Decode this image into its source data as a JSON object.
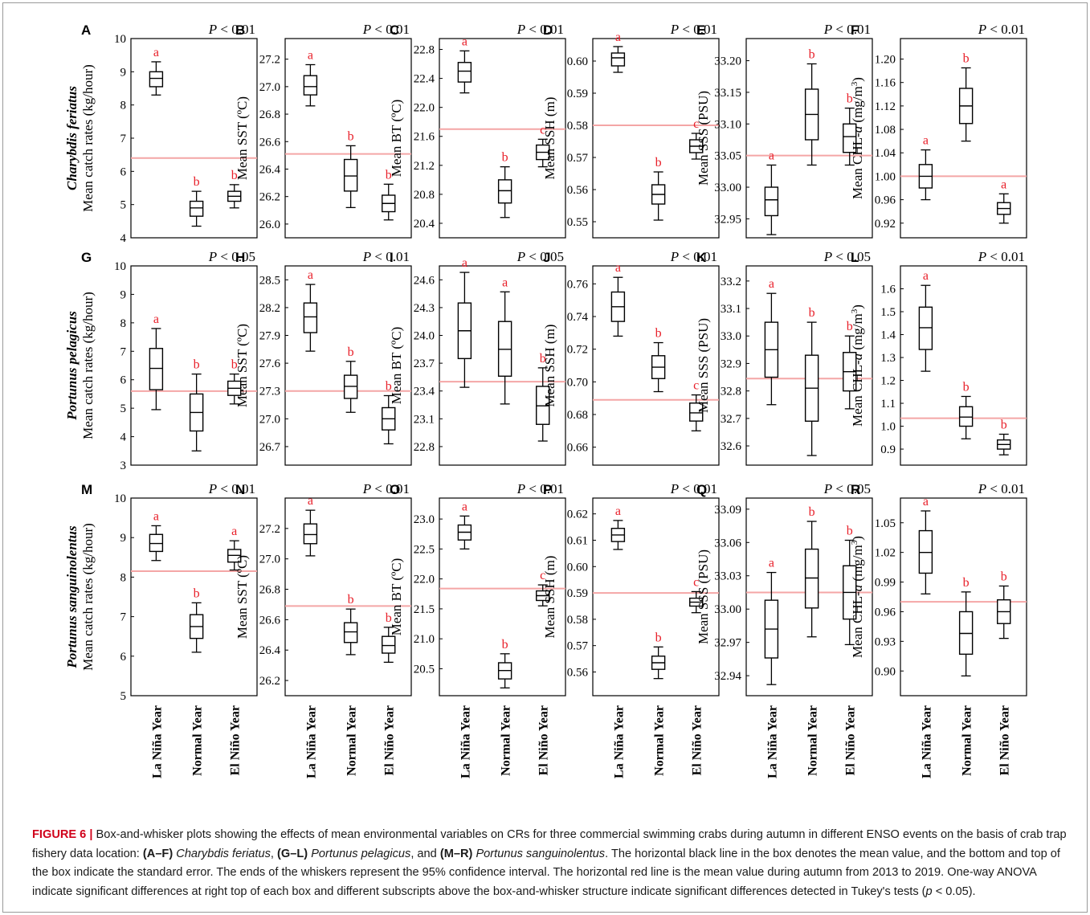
{
  "figure_label": "FIGURE 6 |",
  "caption": {
    "p1": " Box-and-whisker plots showing the effects of mean environmental variables on CRs for three commercial swimming crabs during autumn in different ENSO events on the basis of crab trap fishery data location: ",
    "r1": "(A–F)",
    "s1": "Charybdis feriatus",
    "c1": ", ",
    "r2": "(G–L)",
    "s2": "Portunus pelagicus",
    "c2": ", and ",
    "r3": "(M–R)",
    "s3": "Portunus sanguinolentus",
    "p2": ". The horizontal black line in the box denotes the mean value, and the bottom and top of the box indicate the standard error. The ends of the whiskers represent the 95% confidence interval. The horizontal red line is the mean value during autumn from 2013 to 2019. One-way ANOVA indicate significant differences at right top of each box and different subscripts above the box-and-whisker structure indicate significant differences detected in Tukey's tests (",
    "pvar": "p",
    "p3": " < 0.05)."
  },
  "colors": {
    "box": "#000000",
    "ref_line": "#f4a6a6",
    "letters": "#e8202a",
    "text": "#000000"
  },
  "chart_data": [
    {
      "type": "box",
      "panel": "A",
      "pvalue": "P < 0.01",
      "species": "Charybdis feriatus",
      "ylabel": "Mean catch rates (kg/hour)",
      "yticks": [
        "4",
        "5",
        "6",
        "7",
        "8",
        "9",
        "10"
      ],
      "ylim": [
        4,
        10
      ],
      "ref": 6.4,
      "categories": [
        "La Niña Year",
        "Normal Year",
        "El Niño Year"
      ],
      "boxes": [
        {
          "mean": 8.8,
          "q1": 8.55,
          "q3": 9.0,
          "lo": 8.3,
          "hi": 9.3,
          "letter": "a"
        },
        {
          "mean": 4.9,
          "q1": 4.65,
          "q3": 5.1,
          "lo": 4.35,
          "hi": 5.4,
          "letter": "b"
        },
        {
          "mean": 5.25,
          "q1": 5.1,
          "q3": 5.4,
          "lo": 4.9,
          "hi": 5.6,
          "letter": "b"
        }
      ]
    },
    {
      "type": "box",
      "panel": "B",
      "pvalue": "P < 0.01",
      "ylabel": "Mean SST (ºC)",
      "yticks": [
        "26.0",
        "26.2",
        "26.4",
        "26.6",
        "26.8",
        "27.0",
        "27.2"
      ],
      "ylim": [
        25.9,
        27.35
      ],
      "ref": 26.51,
      "categories": [
        "La Niña Year",
        "Normal Year",
        "El Niño Year"
      ],
      "boxes": [
        {
          "mean": 27.0,
          "q1": 26.94,
          "q3": 27.08,
          "lo": 26.86,
          "hi": 27.16,
          "letter": "a"
        },
        {
          "mean": 26.35,
          "q1": 26.24,
          "q3": 26.47,
          "lo": 26.12,
          "hi": 26.57,
          "letter": "b"
        },
        {
          "mean": 26.15,
          "q1": 26.09,
          "q3": 26.21,
          "lo": 26.03,
          "hi": 26.29,
          "letter": "b"
        }
      ]
    },
    {
      "type": "box",
      "panel": "C",
      "pvalue": "P < 0.01",
      "ylabel": "Mean BT (ºC)",
      "yticks": [
        "20.4",
        "20.8",
        "21.2",
        "21.6",
        "22.0",
        "22.4",
        "22.8"
      ],
      "ylim": [
        20.2,
        22.95
      ],
      "ref": 21.7,
      "categories": [
        "La Niña Year",
        "Normal Year",
        "El Niño Year"
      ],
      "boxes": [
        {
          "mean": 22.5,
          "q1": 22.35,
          "q3": 22.62,
          "lo": 22.2,
          "hi": 22.78,
          "letter": "a"
        },
        {
          "mean": 20.85,
          "q1": 20.68,
          "q3": 21.0,
          "lo": 20.48,
          "hi": 21.18,
          "letter": "b"
        },
        {
          "mean": 21.38,
          "q1": 21.28,
          "q3": 21.48,
          "lo": 21.18,
          "hi": 21.56,
          "letter": "c"
        }
      ]
    },
    {
      "type": "box",
      "panel": "D",
      "pvalue": "P < 0.01",
      "ylabel": "Mean SSH (m)",
      "yticks": [
        "0.55",
        "0.56",
        "0.57",
        "0.58",
        "0.59",
        "0.60"
      ],
      "ylim": [
        0.545,
        0.607
      ],
      "ref": 0.58,
      "categories": [
        "La Niña Year",
        "Normal Year",
        "El Niño Year"
      ],
      "boxes": [
        {
          "mean": 0.601,
          "q1": 0.5985,
          "q3": 0.6025,
          "lo": 0.5965,
          "hi": 0.6045,
          "letter": "a"
        },
        {
          "mean": 0.5585,
          "q1": 0.5555,
          "q3": 0.5615,
          "lo": 0.5505,
          "hi": 0.5655,
          "letter": "b"
        },
        {
          "mean": 0.5735,
          "q1": 0.5715,
          "q3": 0.5755,
          "lo": 0.5695,
          "hi": 0.5775,
          "letter": "c"
        }
      ]
    },
    {
      "type": "box",
      "panel": "E",
      "pvalue": "P < 0.01",
      "ylabel": "Mean SSS (PSU)",
      "yticks": [
        "32.95",
        "33.00",
        "33.05",
        "33.10",
        "33.15",
        "33.20"
      ],
      "ylim": [
        32.92,
        33.235
      ],
      "ref": 33.05,
      "categories": [
        "La Niña Year",
        "Normal Year",
        "El Niño Year"
      ],
      "boxes": [
        {
          "mean": 32.98,
          "q1": 32.955,
          "q3": 33.0,
          "lo": 32.925,
          "hi": 33.035,
          "letter": "a"
        },
        {
          "mean": 33.115,
          "q1": 33.075,
          "q3": 33.155,
          "lo": 33.035,
          "hi": 33.195,
          "letter": "b"
        },
        {
          "mean": 33.08,
          "q1": 33.055,
          "q3": 33.1,
          "lo": 33.035,
          "hi": 33.125,
          "letter": "b"
        }
      ]
    },
    {
      "type": "box",
      "panel": "F",
      "pvalue": "P < 0.01",
      "ylabel": "Mean CHL-a (mg/m3)",
      "yticks": [
        "0.92",
        "0.96",
        "1.00",
        "1.04",
        "1.08",
        "1.12",
        "1.16",
        "1.20"
      ],
      "ylim": [
        0.895,
        1.235
      ],
      "ref": 1.0,
      "categories": [
        "La Niña Year",
        "Normal Year",
        "El Niño Year"
      ],
      "boxes": [
        {
          "mean": 1.0,
          "q1": 0.98,
          "q3": 1.02,
          "lo": 0.96,
          "hi": 1.045,
          "letter": "a"
        },
        {
          "mean": 1.12,
          "q1": 1.09,
          "q3": 1.15,
          "lo": 1.06,
          "hi": 1.185,
          "letter": "b"
        },
        {
          "mean": 0.945,
          "q1": 0.935,
          "q3": 0.955,
          "lo": 0.92,
          "hi": 0.97,
          "letter": "a"
        }
      ]
    },
    {
      "type": "box",
      "panel": "G",
      "pvalue": "P < 0.05",
      "species": "Portunus pelagicus",
      "ylabel": "Mean catch rates (kg/hour)",
      "yticks": [
        "3",
        "4",
        "5",
        "6",
        "7",
        "8",
        "9",
        "10"
      ],
      "ylim": [
        3,
        10
      ],
      "ref": 5.6,
      "categories": [
        "La Niña Year",
        "Normal Year",
        "El Niño Year"
      ],
      "boxes": [
        {
          "mean": 6.4,
          "q1": 5.65,
          "q3": 7.1,
          "lo": 4.95,
          "hi": 7.8,
          "letter": "a"
        },
        {
          "mean": 4.85,
          "q1": 4.2,
          "q3": 5.5,
          "lo": 3.5,
          "hi": 6.2,
          "letter": "b"
        },
        {
          "mean": 5.7,
          "q1": 5.45,
          "q3": 5.95,
          "lo": 5.15,
          "hi": 6.2,
          "letter": "b"
        }
      ]
    },
    {
      "type": "box",
      "panel": "H",
      "pvalue": "P < 0.01",
      "ylabel": "Mean SST (ºC)",
      "yticks": [
        "26.7",
        "27.0",
        "27.3",
        "27.6",
        "27.9",
        "28.2",
        "28.5"
      ],
      "ylim": [
        26.5,
        28.65
      ],
      "ref": 27.3,
      "categories": [
        "La Niña Year",
        "Normal Year",
        "El Niño Year"
      ],
      "boxes": [
        {
          "mean": 28.1,
          "q1": 27.93,
          "q3": 28.25,
          "lo": 27.73,
          "hi": 28.45,
          "letter": "a"
        },
        {
          "mean": 27.35,
          "q1": 27.22,
          "q3": 27.47,
          "lo": 27.07,
          "hi": 27.62,
          "letter": "b"
        },
        {
          "mean": 27.0,
          "q1": 26.88,
          "q3": 27.12,
          "lo": 26.73,
          "hi": 27.25,
          "letter": "b"
        }
      ]
    },
    {
      "type": "box",
      "panel": "I",
      "pvalue": "P < 0.05",
      "ylabel": "Mean BT (ºC)",
      "yticks": [
        "22.8",
        "23.1",
        "23.4",
        "23.7",
        "24.0",
        "24.3",
        "24.6"
      ],
      "ylim": [
        22.6,
        24.75
      ],
      "ref": 23.5,
      "categories": [
        "La Niña Year",
        "Normal Year",
        "El Niño Year"
      ],
      "boxes": [
        {
          "mean": 24.05,
          "q1": 23.75,
          "q3": 24.35,
          "lo": 23.44,
          "hi": 24.68,
          "letter": "a"
        },
        {
          "mean": 23.85,
          "q1": 23.56,
          "q3": 24.15,
          "lo": 23.26,
          "hi": 24.47,
          "letter": "a"
        },
        {
          "mean": 23.24,
          "q1": 23.04,
          "q3": 23.45,
          "lo": 22.86,
          "hi": 23.65,
          "letter": "b"
        }
      ]
    },
    {
      "type": "box",
      "panel": "J",
      "pvalue": "P < 0.01",
      "ylabel": "Mean SSH (m)",
      "yticks": [
        "0.66",
        "0.68",
        "0.70",
        "0.72",
        "0.74",
        "0.76"
      ],
      "ylim": [
        0.649,
        0.771
      ],
      "ref": 0.689,
      "categories": [
        "La Niña Year",
        "Normal Year",
        "El Niño Year"
      ],
      "boxes": [
        {
          "mean": 0.746,
          "q1": 0.737,
          "q3": 0.755,
          "lo": 0.728,
          "hi": 0.764,
          "letter": "a"
        },
        {
          "mean": 0.709,
          "q1": 0.702,
          "q3": 0.716,
          "lo": 0.694,
          "hi": 0.724,
          "letter": "b"
        },
        {
          "mean": 0.681,
          "q1": 0.676,
          "q3": 0.687,
          "lo": 0.67,
          "hi": 0.692,
          "letter": "c"
        }
      ]
    },
    {
      "type": "box",
      "panel": "K",
      "pvalue": "P < 0.05",
      "ylabel": "Mean SSS (PSU)",
      "yticks": [
        "32.6",
        "32.7",
        "32.8",
        "32.9",
        "33.0",
        "33.1",
        "33.2"
      ],
      "ylim": [
        32.53,
        33.255
      ],
      "ref": 32.845,
      "categories": [
        "La Niña Year",
        "Normal Year",
        "El Niño Year"
      ],
      "boxes": [
        {
          "mean": 32.95,
          "q1": 32.85,
          "q3": 33.05,
          "lo": 32.75,
          "hi": 33.155,
          "letter": "a"
        },
        {
          "mean": 32.81,
          "q1": 32.69,
          "q3": 32.93,
          "lo": 32.565,
          "hi": 33.05,
          "letter": "b"
        },
        {
          "mean": 32.87,
          "q1": 32.8,
          "q3": 32.94,
          "lo": 32.735,
          "hi": 33.0,
          "letter": "b"
        }
      ]
    },
    {
      "type": "box",
      "panel": "L",
      "pvalue": "P < 0.01",
      "ylabel": "Mean CHL-a (mg/m3)",
      "yticks": [
        "0.9",
        "1.0",
        "1.1",
        "1.2",
        "1.3",
        "1.4",
        "1.5",
        "1.6"
      ],
      "ylim": [
        0.83,
        1.7
      ],
      "ref": 1.035,
      "categories": [
        "La Niña Year",
        "Normal Year",
        "El Niño Year"
      ],
      "boxes": [
        {
          "mean": 1.43,
          "q1": 1.335,
          "q3": 1.52,
          "lo": 1.24,
          "hi": 1.615,
          "letter": "a"
        },
        {
          "mean": 1.04,
          "q1": 1.0,
          "q3": 1.085,
          "lo": 0.945,
          "hi": 1.13,
          "letter": "b"
        },
        {
          "mean": 0.92,
          "q1": 0.9,
          "q3": 0.94,
          "lo": 0.875,
          "hi": 0.965,
          "letter": "b"
        }
      ]
    },
    {
      "type": "box",
      "panel": "M",
      "pvalue": "P < 0.01",
      "species": "Portunus sanguinolentus",
      "ylabel": "Mean catch rates (kg/hour)",
      "yticks": [
        "5",
        "6",
        "7",
        "8",
        "9",
        "10"
      ],
      "ylim": [
        5,
        10
      ],
      "ref": 8.15,
      "categories": [
        "La Niña Year",
        "Normal Year",
        "El Niño Year"
      ],
      "boxes": [
        {
          "mean": 8.85,
          "q1": 8.65,
          "q3": 9.08,
          "lo": 8.42,
          "hi": 9.3,
          "letter": "a"
        },
        {
          "mean": 6.75,
          "q1": 6.45,
          "q3": 7.05,
          "lo": 6.1,
          "hi": 7.35,
          "letter": "b"
        },
        {
          "mean": 8.55,
          "q1": 8.38,
          "q3": 8.7,
          "lo": 8.18,
          "hi": 8.92,
          "letter": "a"
        }
      ]
    },
    {
      "type": "box",
      "panel": "N",
      "pvalue": "P < 0.01",
      "ylabel": "Mean SST (ºC)",
      "yticks": [
        "26.2",
        "26.4",
        "26.6",
        "26.8",
        "27.0",
        "27.2"
      ],
      "ylim": [
        26.1,
        27.4
      ],
      "ref": 26.69,
      "categories": [
        "La Niña Year",
        "Normal Year",
        "El Niño Year"
      ],
      "boxes": [
        {
          "mean": 27.16,
          "q1": 27.1,
          "q3": 27.23,
          "lo": 27.02,
          "hi": 27.32,
          "letter": "a"
        },
        {
          "mean": 26.52,
          "q1": 26.45,
          "q3": 26.58,
          "lo": 26.37,
          "hi": 26.67,
          "letter": "b"
        },
        {
          "mean": 26.43,
          "q1": 26.38,
          "q3": 26.49,
          "lo": 26.32,
          "hi": 26.55,
          "letter": "b"
        }
      ]
    },
    {
      "type": "box",
      "panel": "O",
      "pvalue": "P < 0.01",
      "ylabel": "Mean BT (ºC)",
      "yticks": [
        "20.5",
        "21.0",
        "21.5",
        "22.0",
        "22.5",
        "23.0"
      ],
      "ylim": [
        20.05,
        23.35
      ],
      "ref": 21.84,
      "categories": [
        "La Niña Year",
        "Normal Year",
        "El Niño Year"
      ],
      "boxes": [
        {
          "mean": 22.78,
          "q1": 22.65,
          "q3": 22.9,
          "lo": 22.5,
          "hi": 23.05,
          "letter": "a"
        },
        {
          "mean": 20.47,
          "q1": 20.33,
          "q3": 20.6,
          "lo": 20.18,
          "hi": 20.75,
          "letter": "b"
        },
        {
          "mean": 21.72,
          "q1": 21.64,
          "q3": 21.8,
          "lo": 21.55,
          "hi": 21.9,
          "letter": "c"
        }
      ]
    },
    {
      "type": "box",
      "panel": "P",
      "pvalue": "P < 0.01",
      "ylabel": "Mean SSH (m)",
      "yticks": [
        "0.56",
        "0.57",
        "0.58",
        "0.59",
        "0.60",
        "0.61",
        "0.62"
      ],
      "ylim": [
        0.551,
        0.626
      ],
      "ref": 0.59,
      "categories": [
        "La Niña Year",
        "Normal Year",
        "El Niño Year"
      ],
      "boxes": [
        {
          "mean": 0.612,
          "q1": 0.6095,
          "q3": 0.6145,
          "lo": 0.6065,
          "hi": 0.6175,
          "letter": "a"
        },
        {
          "mean": 0.5635,
          "q1": 0.561,
          "q3": 0.566,
          "lo": 0.5575,
          "hi": 0.5695,
          "letter": "b"
        },
        {
          "mean": 0.5865,
          "q1": 0.585,
          "q3": 0.588,
          "lo": 0.5825,
          "hi": 0.5905,
          "letter": "c"
        }
      ]
    },
    {
      "type": "box",
      "panel": "Q",
      "pvalue": "P < 0.05",
      "ylabel": "Mean SSS (PSU)",
      "yticks": [
        "32.94",
        "32.97",
        "33.00",
        "33.03",
        "33.06",
        "33.09"
      ],
      "ylim": [
        32.922,
        33.1
      ],
      "ref": 33.015,
      "categories": [
        "La Niña Year",
        "Normal Year",
        "El Niño Year"
      ],
      "boxes": [
        {
          "mean": 32.982,
          "q1": 32.956,
          "q3": 33.008,
          "lo": 32.932,
          "hi": 33.033,
          "letter": "a"
        },
        {
          "mean": 33.028,
          "q1": 33.001,
          "q3": 33.054,
          "lo": 32.975,
          "hi": 33.079,
          "letter": "b"
        },
        {
          "mean": 33.015,
          "q1": 32.991,
          "q3": 33.039,
          "lo": 32.968,
          "hi": 33.062,
          "letter": "b"
        }
      ]
    },
    {
      "type": "box",
      "panel": "R",
      "pvalue": "P < 0.01",
      "ylabel": "Mean CHL-a (mg/m3)",
      "yticks": [
        "0.90",
        "0.93",
        "0.96",
        "0.99",
        "1.02",
        "1.05"
      ],
      "ylim": [
        0.875,
        1.075
      ],
      "ref": 0.97,
      "categories": [
        "La Niña Year",
        "Normal Year",
        "El Niño Year"
      ],
      "boxes": [
        {
          "mean": 1.02,
          "q1": 0.999,
          "q3": 1.042,
          "lo": 0.978,
          "hi": 1.062,
          "letter": "a"
        },
        {
          "mean": 0.938,
          "q1": 0.917,
          "q3": 0.96,
          "lo": 0.895,
          "hi": 0.98,
          "letter": "b"
        },
        {
          "mean": 0.96,
          "q1": 0.948,
          "q3": 0.972,
          "lo": 0.933,
          "hi": 0.986,
          "letter": "b"
        }
      ]
    }
  ]
}
